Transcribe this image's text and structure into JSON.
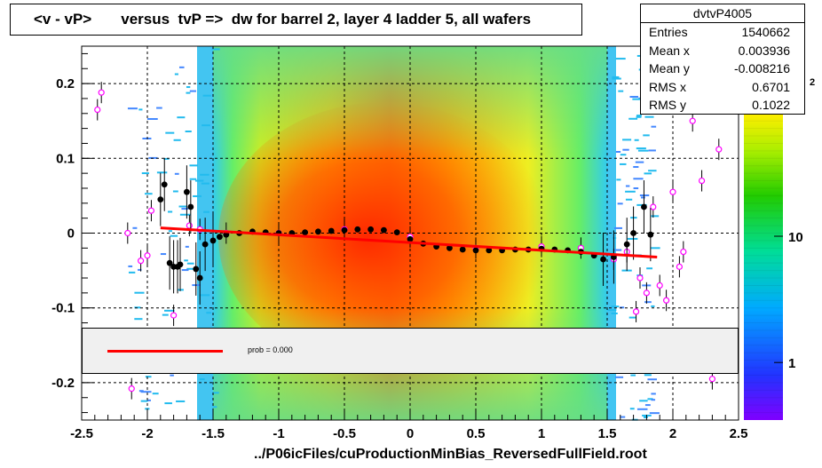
{
  "title": "<v - vP>       versus  tvP =>  dw for barrel 2, layer 4 ladder 5, all wafers",
  "footer": "../P06icFiles/cuProductionMinBias_ReversedFullField.root",
  "stats": {
    "name": "dvtvP4005",
    "rows": [
      {
        "label": "Entries",
        "value": "1540662"
      },
      {
        "label": "Mean x",
        "value": "0.003936"
      },
      {
        "label": "Mean y",
        "value": "-0.008216"
      },
      {
        "label": "RMS x",
        "value": "0.6701"
      },
      {
        "label": "RMS y",
        "value": "0.1022"
      }
    ]
  },
  "legend": {
    "label": "prob = 0.000",
    "color": "#ff0000"
  },
  "palette_labels": [
    {
      "text": "1",
      "value": 1
    },
    {
      "text": "10",
      "value": 10
    }
  ],
  "palette_exponent_label": "2",
  "chart_data": {
    "type": "heatmap",
    "xlim": [
      -2.5,
      2.5
    ],
    "ylim": [
      -0.25,
      0.25
    ],
    "xticks": [
      "-2.5",
      "-2",
      "-1.5",
      "-1",
      "-0.5",
      "0",
      "0.5",
      "1",
      "1.5",
      "2",
      "2.5"
    ],
    "yticks": [
      "-0.2",
      "-0.1",
      "0",
      "0.1",
      "0.2"
    ],
    "grid": true,
    "profile_black": [
      {
        "x": -1.9,
        "y": 0.045
      },
      {
        "x": -1.87,
        "y": 0.065
      },
      {
        "x": -1.83,
        "y": -0.04
      },
      {
        "x": -1.8,
        "y": -0.045
      },
      {
        "x": -1.77,
        "y": -0.045
      },
      {
        "x": -1.75,
        "y": -0.042
      },
      {
        "x": -1.7,
        "y": 0.055
      },
      {
        "x": -1.67,
        "y": 0.035
      },
      {
        "x": -1.63,
        "y": -0.048
      },
      {
        "x": -1.6,
        "y": -0.06
      },
      {
        "x": -1.56,
        "y": -0.015
      },
      {
        "x": -1.5,
        "y": -0.01
      },
      {
        "x": -1.45,
        "y": -0.005
      },
      {
        "x": -1.4,
        "y": -0.002
      },
      {
        "x": -1.3,
        "y": 0.0
      },
      {
        "x": -1.2,
        "y": 0.002
      },
      {
        "x": -1.1,
        "y": 0.001
      },
      {
        "x": -1.0,
        "y": 0.0
      },
      {
        "x": -0.9,
        "y": 0.0
      },
      {
        "x": -0.8,
        "y": 0.001
      },
      {
        "x": -0.7,
        "y": 0.002
      },
      {
        "x": -0.6,
        "y": 0.003
      },
      {
        "x": -0.5,
        "y": 0.004
      },
      {
        "x": -0.4,
        "y": 0.005
      },
      {
        "x": -0.3,
        "y": 0.005
      },
      {
        "x": -0.2,
        "y": 0.004
      },
      {
        "x": -0.1,
        "y": 0.001
      },
      {
        "x": 0.0,
        "y": -0.008
      },
      {
        "x": 0.1,
        "y": -0.014
      },
      {
        "x": 0.2,
        "y": -0.018
      },
      {
        "x": 0.3,
        "y": -0.02
      },
      {
        "x": 0.4,
        "y": -0.022
      },
      {
        "x": 0.5,
        "y": -0.023
      },
      {
        "x": 0.6,
        "y": -0.023
      },
      {
        "x": 0.7,
        "y": -0.023
      },
      {
        "x": 0.8,
        "y": -0.022
      },
      {
        "x": 0.9,
        "y": -0.022
      },
      {
        "x": 1.0,
        "y": -0.021
      },
      {
        "x": 1.1,
        "y": -0.022
      },
      {
        "x": 1.2,
        "y": -0.023
      },
      {
        "x": 1.3,
        "y": -0.025
      },
      {
        "x": 1.4,
        "y": -0.03
      },
      {
        "x": 1.47,
        "y": -0.035
      },
      {
        "x": 1.55,
        "y": -0.032
      },
      {
        "x": 1.65,
        "y": -0.015
      },
      {
        "x": 1.7,
        "y": 0.0
      },
      {
        "x": 1.78,
        "y": 0.035
      },
      {
        "x": 1.83,
        "y": -0.002
      }
    ],
    "profile_magenta": [
      {
        "x": -2.38,
        "y": 0.165
      },
      {
        "x": -2.35,
        "y": 0.188
      },
      {
        "x": -2.15,
        "y": 0.0
      },
      {
        "x": -2.05,
        "y": -0.037
      },
      {
        "x": -2.0,
        "y": -0.03
      },
      {
        "x": -1.97,
        "y": 0.03
      },
      {
        "x": -1.8,
        "y": -0.11
      },
      {
        "x": -1.68,
        "y": 0.01
      },
      {
        "x": -1.6,
        "y": 0.005
      },
      {
        "x": -1.4,
        "y": 0.0
      },
      {
        "x": -1.0,
        "y": 0.0
      },
      {
        "x": -0.5,
        "y": 0.005
      },
      {
        "x": 0.0,
        "y": -0.005
      },
      {
        "x": 0.5,
        "y": -0.02
      },
      {
        "x": 1.0,
        "y": -0.018
      },
      {
        "x": 1.3,
        "y": -0.02
      },
      {
        "x": 1.55,
        "y": -0.035
      },
      {
        "x": 1.65,
        "y": -0.025
      },
      {
        "x": 1.75,
        "y": -0.06
      },
      {
        "x": 1.8,
        "y": -0.08
      },
      {
        "x": 1.85,
        "y": 0.035
      },
      {
        "x": 1.9,
        "y": -0.07
      },
      {
        "x": 1.95,
        "y": -0.09
      },
      {
        "x": 2.0,
        "y": 0.055
      },
      {
        "x": 2.05,
        "y": -0.045
      },
      {
        "x": 2.08,
        "y": -0.025
      },
      {
        "x": 2.15,
        "y": 0.15
      },
      {
        "x": 2.22,
        "y": 0.07
      },
      {
        "x": 2.35,
        "y": 0.112
      },
      {
        "x": -2.12,
        "y": -0.208
      },
      {
        "x": 2.3,
        "y": -0.195
      },
      {
        "x": 1.72,
        "y": -0.105
      }
    ],
    "fit_line": {
      "x": [
        -1.9,
        1.88
      ],
      "y": [
        0.007,
        -0.032
      ]
    }
  }
}
